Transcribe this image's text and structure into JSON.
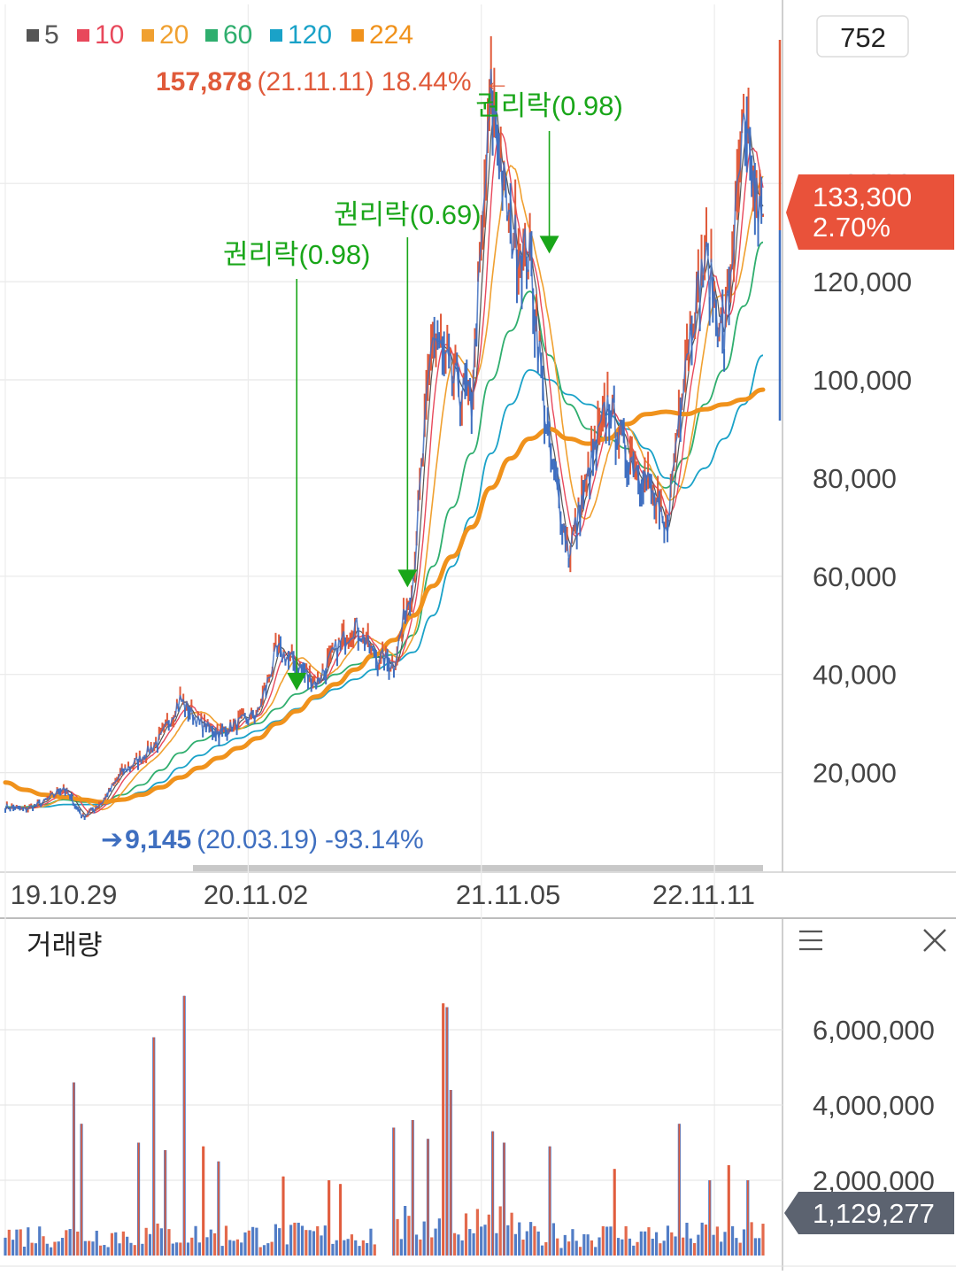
{
  "colors": {
    "ma5": "#555555",
    "ma10": "#e8485b",
    "ma20": "#f0a030",
    "ma60": "#2fae6e",
    "ma120": "#1aa2c8",
    "ma224": "#f0921c",
    "candle_up": "#e05a3a",
    "candle_down": "#3f6fc0",
    "annotation": "#19a619",
    "high_label": "#e05a3a",
    "low_label": "#3f6fc0",
    "price_badge": "#e9523a",
    "volume_badge": "#5c6370",
    "grid": "#e8e8e8",
    "axis_text": "#444444"
  },
  "top_right_value": "752",
  "chart_data": [
    {
      "type": "line",
      "panel": "price",
      "legend": [
        {
          "label": "5",
          "color_key": "ma5"
        },
        {
          "label": "10",
          "color_key": "ma10"
        },
        {
          "label": "20",
          "color_key": "ma20"
        },
        {
          "label": "60",
          "color_key": "ma60"
        },
        {
          "label": "120",
          "color_key": "ma120"
        },
        {
          "label": "224",
          "color_key": "ma224"
        }
      ],
      "x_tick_labels": [
        "19.10.29",
        "20.11.02",
        "21.11.05",
        "22.11.11"
      ],
      "x_tick_index": [
        0,
        12.5,
        24.5,
        36.5
      ],
      "y_ticks": [
        20000,
        40000,
        60000,
        80000,
        100000,
        120000
      ],
      "y_tick_labels": [
        "20,000",
        "40,000",
        "60,000",
        "80,000",
        "100,000",
        "120,000"
      ],
      "ylim": [
        4000,
        180000
      ],
      "x_count": 40,
      "price_path": [
        13000,
        12500,
        14000,
        17000,
        11000,
        14000,
        20000,
        23000,
        27000,
        35000,
        30000,
        28000,
        30000,
        32000,
        45000,
        42000,
        38000,
        45000,
        50000,
        44000,
        42000,
        60000,
        110000,
        100000,
        95000,
        158000,
        130000,
        125000,
        85000,
        65000,
        80000,
        95000,
        85000,
        80000,
        68000,
        105000,
        125000,
        108000,
        150000,
        130000
      ],
      "ma60": [
        13000,
        13000,
        13500,
        14500,
        14000,
        14000,
        15500,
        17500,
        20500,
        24000,
        26500,
        28000,
        29000,
        30000,
        33000,
        36000,
        37500,
        40000,
        42000,
        43500,
        44000,
        48000,
        62000,
        74000,
        85000,
        100000,
        110000,
        118000,
        105000,
        95000,
        90000,
        88000,
        86000,
        82000,
        78000,
        84000,
        95000,
        102000,
        115000,
        128000
      ],
      "ma120": [
        13000,
        13000,
        13000,
        13500,
        13500,
        13500,
        14500,
        16000,
        18000,
        21000,
        23500,
        25500,
        27000,
        28500,
        30500,
        33000,
        35000,
        37000,
        39000,
        41000,
        42500,
        44500,
        52000,
        62000,
        72000,
        85000,
        95000,
        102000,
        100000,
        97000,
        95000,
        93000,
        90000,
        86000,
        80000,
        78000,
        82000,
        88000,
        95000,
        105000
      ],
      "ma224": [
        18000,
        16500,
        15500,
        15000,
        14500,
        14000,
        14500,
        15500,
        17000,
        19000,
        21000,
        23000,
        25000,
        27000,
        30000,
        32500,
        35500,
        38000,
        41000,
        44000,
        47000,
        52000,
        58000,
        64000,
        70000,
        78000,
        84000,
        88000,
        90000,
        88000,
        87000,
        88000,
        91000,
        93000,
        93500,
        93000,
        94000,
        95000,
        96000,
        98000
      ],
      "annotations": [
        {
          "label": "권리락(0.98)",
          "x_index": 15,
          "price": 36000
        },
        {
          "label": "권리락(0.69)",
          "x_index": 20.7,
          "price": 57000
        },
        {
          "label": "권리락(0.98)",
          "x_index": 28,
          "price": 125000
        }
      ],
      "high_marker": {
        "value": "157,878",
        "date": "(21.11.11)",
        "pct": "18.44%",
        "arrow": "←",
        "x_index": 25.6
      },
      "low_marker": {
        "arrow": "➔",
        "value": "9,145",
        "date": "(20.03.19)",
        "pct": "-93.14%",
        "x_index": 5
      },
      "current_price": {
        "value": "133,300",
        "pct": "2.70%",
        "partial_tick": "140,000"
      }
    },
    {
      "type": "bar",
      "panel": "volume",
      "title": "거래량",
      "y_ticks": [
        2000000,
        4000000,
        6000000
      ],
      "y_tick_labels": [
        "2,000,000",
        "4,000,000",
        "6,000,000"
      ],
      "ylim": [
        0,
        8000000
      ],
      "bar_count": 200,
      "gap_range": [
        98,
        101
      ],
      "spikes": [
        [
          18,
          4600000
        ],
        [
          20,
          3500000
        ],
        [
          35,
          3000000
        ],
        [
          39,
          5800000
        ],
        [
          42,
          2800000
        ],
        [
          47,
          6900000
        ],
        [
          52,
          2900000
        ],
        [
          56,
          2500000
        ],
        [
          73,
          2100000
        ],
        [
          85,
          2000000
        ],
        [
          88,
          1900000
        ],
        [
          102,
          3400000
        ],
        [
          107,
          3600000
        ],
        [
          111,
          3100000
        ],
        [
          115,
          6700000
        ],
        [
          116,
          6600000
        ],
        [
          117,
          4400000
        ],
        [
          128,
          3300000
        ],
        [
          131,
          3000000
        ],
        [
          143,
          2900000
        ],
        [
          160,
          2300000
        ],
        [
          177,
          3500000
        ],
        [
          185,
          2000000
        ],
        [
          190,
          2400000
        ],
        [
          195,
          2000000
        ]
      ],
      "current_volume": "1,129,277"
    }
  ]
}
